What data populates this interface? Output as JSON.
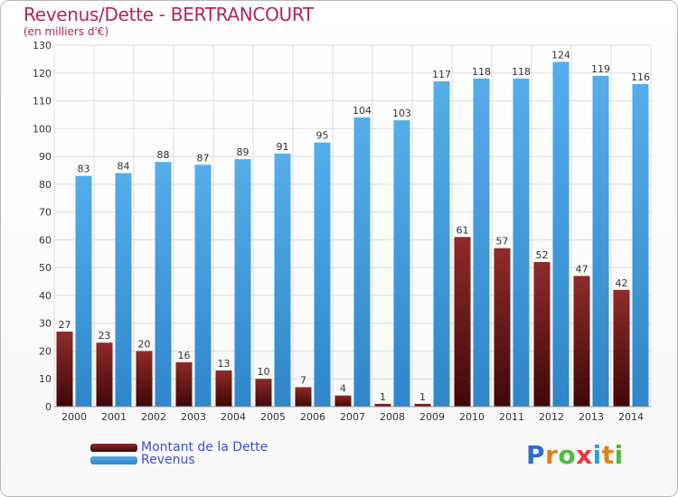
{
  "header": {
    "title": "Revenus/Dette - BERTRANCOURT",
    "subtitle": "(en milliers d'€)"
  },
  "legend": {
    "debt_label": "Montant de la Dette",
    "revenue_label": "Revenus"
  },
  "logo": {
    "text": "Proxiti",
    "letters": [
      "P",
      "r",
      "o",
      "x",
      "i",
      "t",
      "i"
    ],
    "colors": [
      "#2f6fc7",
      "#e0801c",
      "#4bbf3a",
      "#e53a3a",
      "#2f9fd9",
      "#e0801c",
      "#4bbf3a"
    ]
  },
  "colors": {
    "debt": "#7a1f1f",
    "debt_dark": "#4a0c0c",
    "revenue": "#4aa3e3",
    "revenue_dark": "#2a7fc2",
    "grid": "#dddddd",
    "axis_text": "#333333"
  },
  "chart_data": {
    "type": "bar",
    "title": "Revenus/Dette - BERTRANCOURT",
    "subtitle": "(en milliers d'€)",
    "categories": [
      "2000",
      "2001",
      "2002",
      "2003",
      "2004",
      "2005",
      "2006",
      "2007",
      "2008",
      "2009",
      "2010",
      "2011",
      "2012",
      "2013",
      "2014"
    ],
    "series": [
      {
        "name": "Montant de la Dette",
        "values": [
          27,
          23,
          20,
          16,
          13,
          10,
          7,
          4,
          1,
          1,
          61,
          57,
          52,
          47,
          42
        ]
      },
      {
        "name": "Revenus",
        "values": [
          83,
          84,
          88,
          87,
          89,
          91,
          95,
          104,
          103,
          117,
          118,
          118,
          124,
          119,
          116
        ]
      }
    ],
    "ylim": [
      0,
      130
    ],
    "yticks": [
      0,
      10,
      20,
      30,
      40,
      50,
      60,
      70,
      80,
      90,
      100,
      110,
      120,
      130
    ],
    "grid": true,
    "legend_position": "bottom-left"
  }
}
